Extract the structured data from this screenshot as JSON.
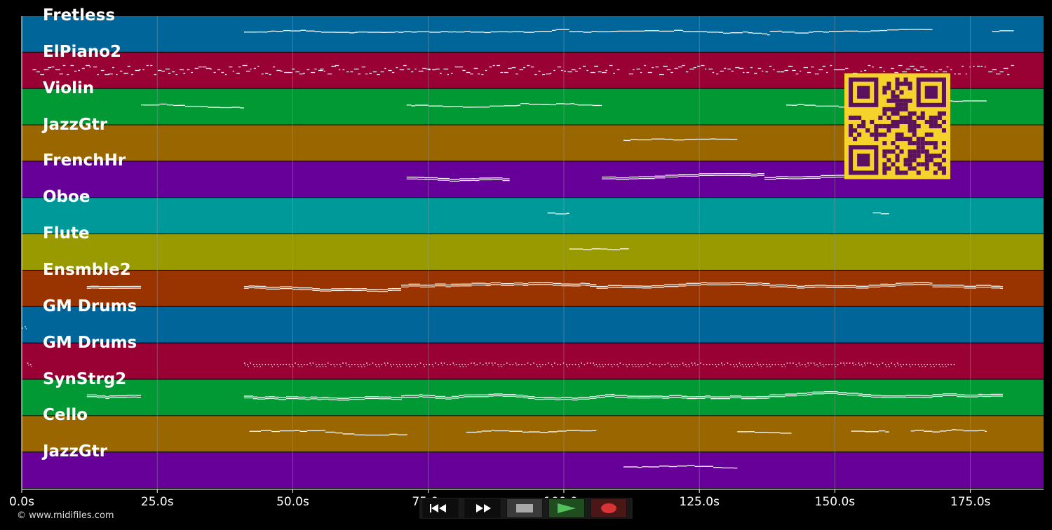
{
  "chart_data": {
    "type": "piano-roll",
    "x_unit": "s",
    "xlim": [
      0,
      188.5
    ],
    "x_ticks": [
      "0.0s",
      "25.0s",
      "50.0s",
      "75.0s",
      "100.0s",
      "125.0s",
      "150.0s",
      "175.0s"
    ],
    "x_tick_values": [
      0,
      25,
      50,
      75,
      100,
      125,
      150,
      175
    ],
    "grid": true,
    "tracks": [
      {
        "name": "Fretless",
        "color": "#00669a",
        "phrases": [
          [
            41,
            46
          ],
          [
            46,
            62
          ],
          [
            62,
            80
          ],
          [
            80,
            101
          ],
          [
            101,
            122
          ],
          [
            122,
            138
          ],
          [
            138,
            168
          ],
          [
            179,
            183
          ]
        ],
        "style": "line"
      },
      {
        "name": "ElPiano2",
        "color": "#990033",
        "phrases": [
          [
            2,
            27
          ],
          [
            27,
            40
          ],
          [
            40,
            55
          ],
          [
            55,
            75
          ],
          [
            75,
            100
          ],
          [
            100,
            110
          ],
          [
            112,
            140
          ],
          [
            140,
            165
          ],
          [
            165,
            183
          ]
        ],
        "style": "dense"
      },
      {
        "name": "Violin",
        "color": "#009933",
        "phrases": [
          [
            22,
            41
          ],
          [
            71,
            92
          ],
          [
            92,
            107
          ],
          [
            141,
            152
          ],
          [
            158,
            178
          ]
        ],
        "style": "line"
      },
      {
        "name": "JazzGtr",
        "color": "#996600",
        "phrases": [
          [
            111,
            132
          ]
        ],
        "style": "line"
      },
      {
        "name": "FrenchHr",
        "color": "#660099",
        "phrases": [
          [
            71,
            90
          ],
          [
            107,
            137
          ],
          [
            137,
            160
          ],
          [
            160,
            168
          ]
        ],
        "style": "chords"
      },
      {
        "name": "Oboe",
        "color": "#009999",
        "phrases": [
          [
            97,
            101
          ],
          [
            157,
            160
          ]
        ],
        "style": "line"
      },
      {
        "name": "Flute",
        "color": "#999900",
        "phrases": [
          [
            101,
            112
          ]
        ],
        "style": "line"
      },
      {
        "name": "Ensmble2",
        "color": "#993300",
        "phrases": [
          [
            12,
            22
          ],
          [
            41,
            70
          ],
          [
            70,
            106
          ],
          [
            106,
            138
          ],
          [
            138,
            168
          ],
          [
            168,
            181
          ]
        ],
        "style": "chords"
      },
      {
        "name": "GM Drums",
        "color": "#00669a",
        "phrases": [
          [
            0,
            1
          ]
        ],
        "style": "dots"
      },
      {
        "name": "GM Drums",
        "color": "#990033",
        "phrases": [
          [
            1,
            2
          ],
          [
            41,
            172
          ]
        ],
        "style": "dots"
      },
      {
        "name": "SynStrg2",
        "color": "#009933",
        "phrases": [
          [
            12,
            22
          ],
          [
            41,
            70
          ],
          [
            70,
            106
          ],
          [
            106,
            138
          ],
          [
            138,
            168
          ],
          [
            168,
            181
          ]
        ],
        "style": "chords"
      },
      {
        "name": "Cello",
        "color": "#996600",
        "phrases": [
          [
            42,
            56
          ],
          [
            56,
            71
          ],
          [
            82,
            106
          ],
          [
            132,
            142
          ],
          [
            153,
            160
          ],
          [
            164,
            178
          ]
        ],
        "style": "line"
      },
      {
        "name": "JazzGtr",
        "color": "#660099",
        "phrases": [
          [
            111,
            132
          ]
        ],
        "style": "line"
      }
    ]
  },
  "footer": {
    "copyright": "© www.midifiles.com"
  },
  "transport": {
    "buttons": [
      {
        "name": "rewind-button",
        "icon": "rewind-icon"
      },
      {
        "name": "fast-forward-button",
        "icon": "fast-forward-icon"
      },
      {
        "name": "stop-button",
        "icon": "stop-icon"
      },
      {
        "name": "play-button",
        "icon": "play-icon"
      },
      {
        "name": "record-button",
        "icon": "record-icon"
      }
    ]
  },
  "colors": {
    "background": "#000000",
    "grid": "#9aa0a6",
    "note": "#ffffff",
    "qr_bg": "#f5d32a",
    "qr_fg": "#5b1060"
  },
  "qr": {
    "icon": "qr-code-icon"
  }
}
